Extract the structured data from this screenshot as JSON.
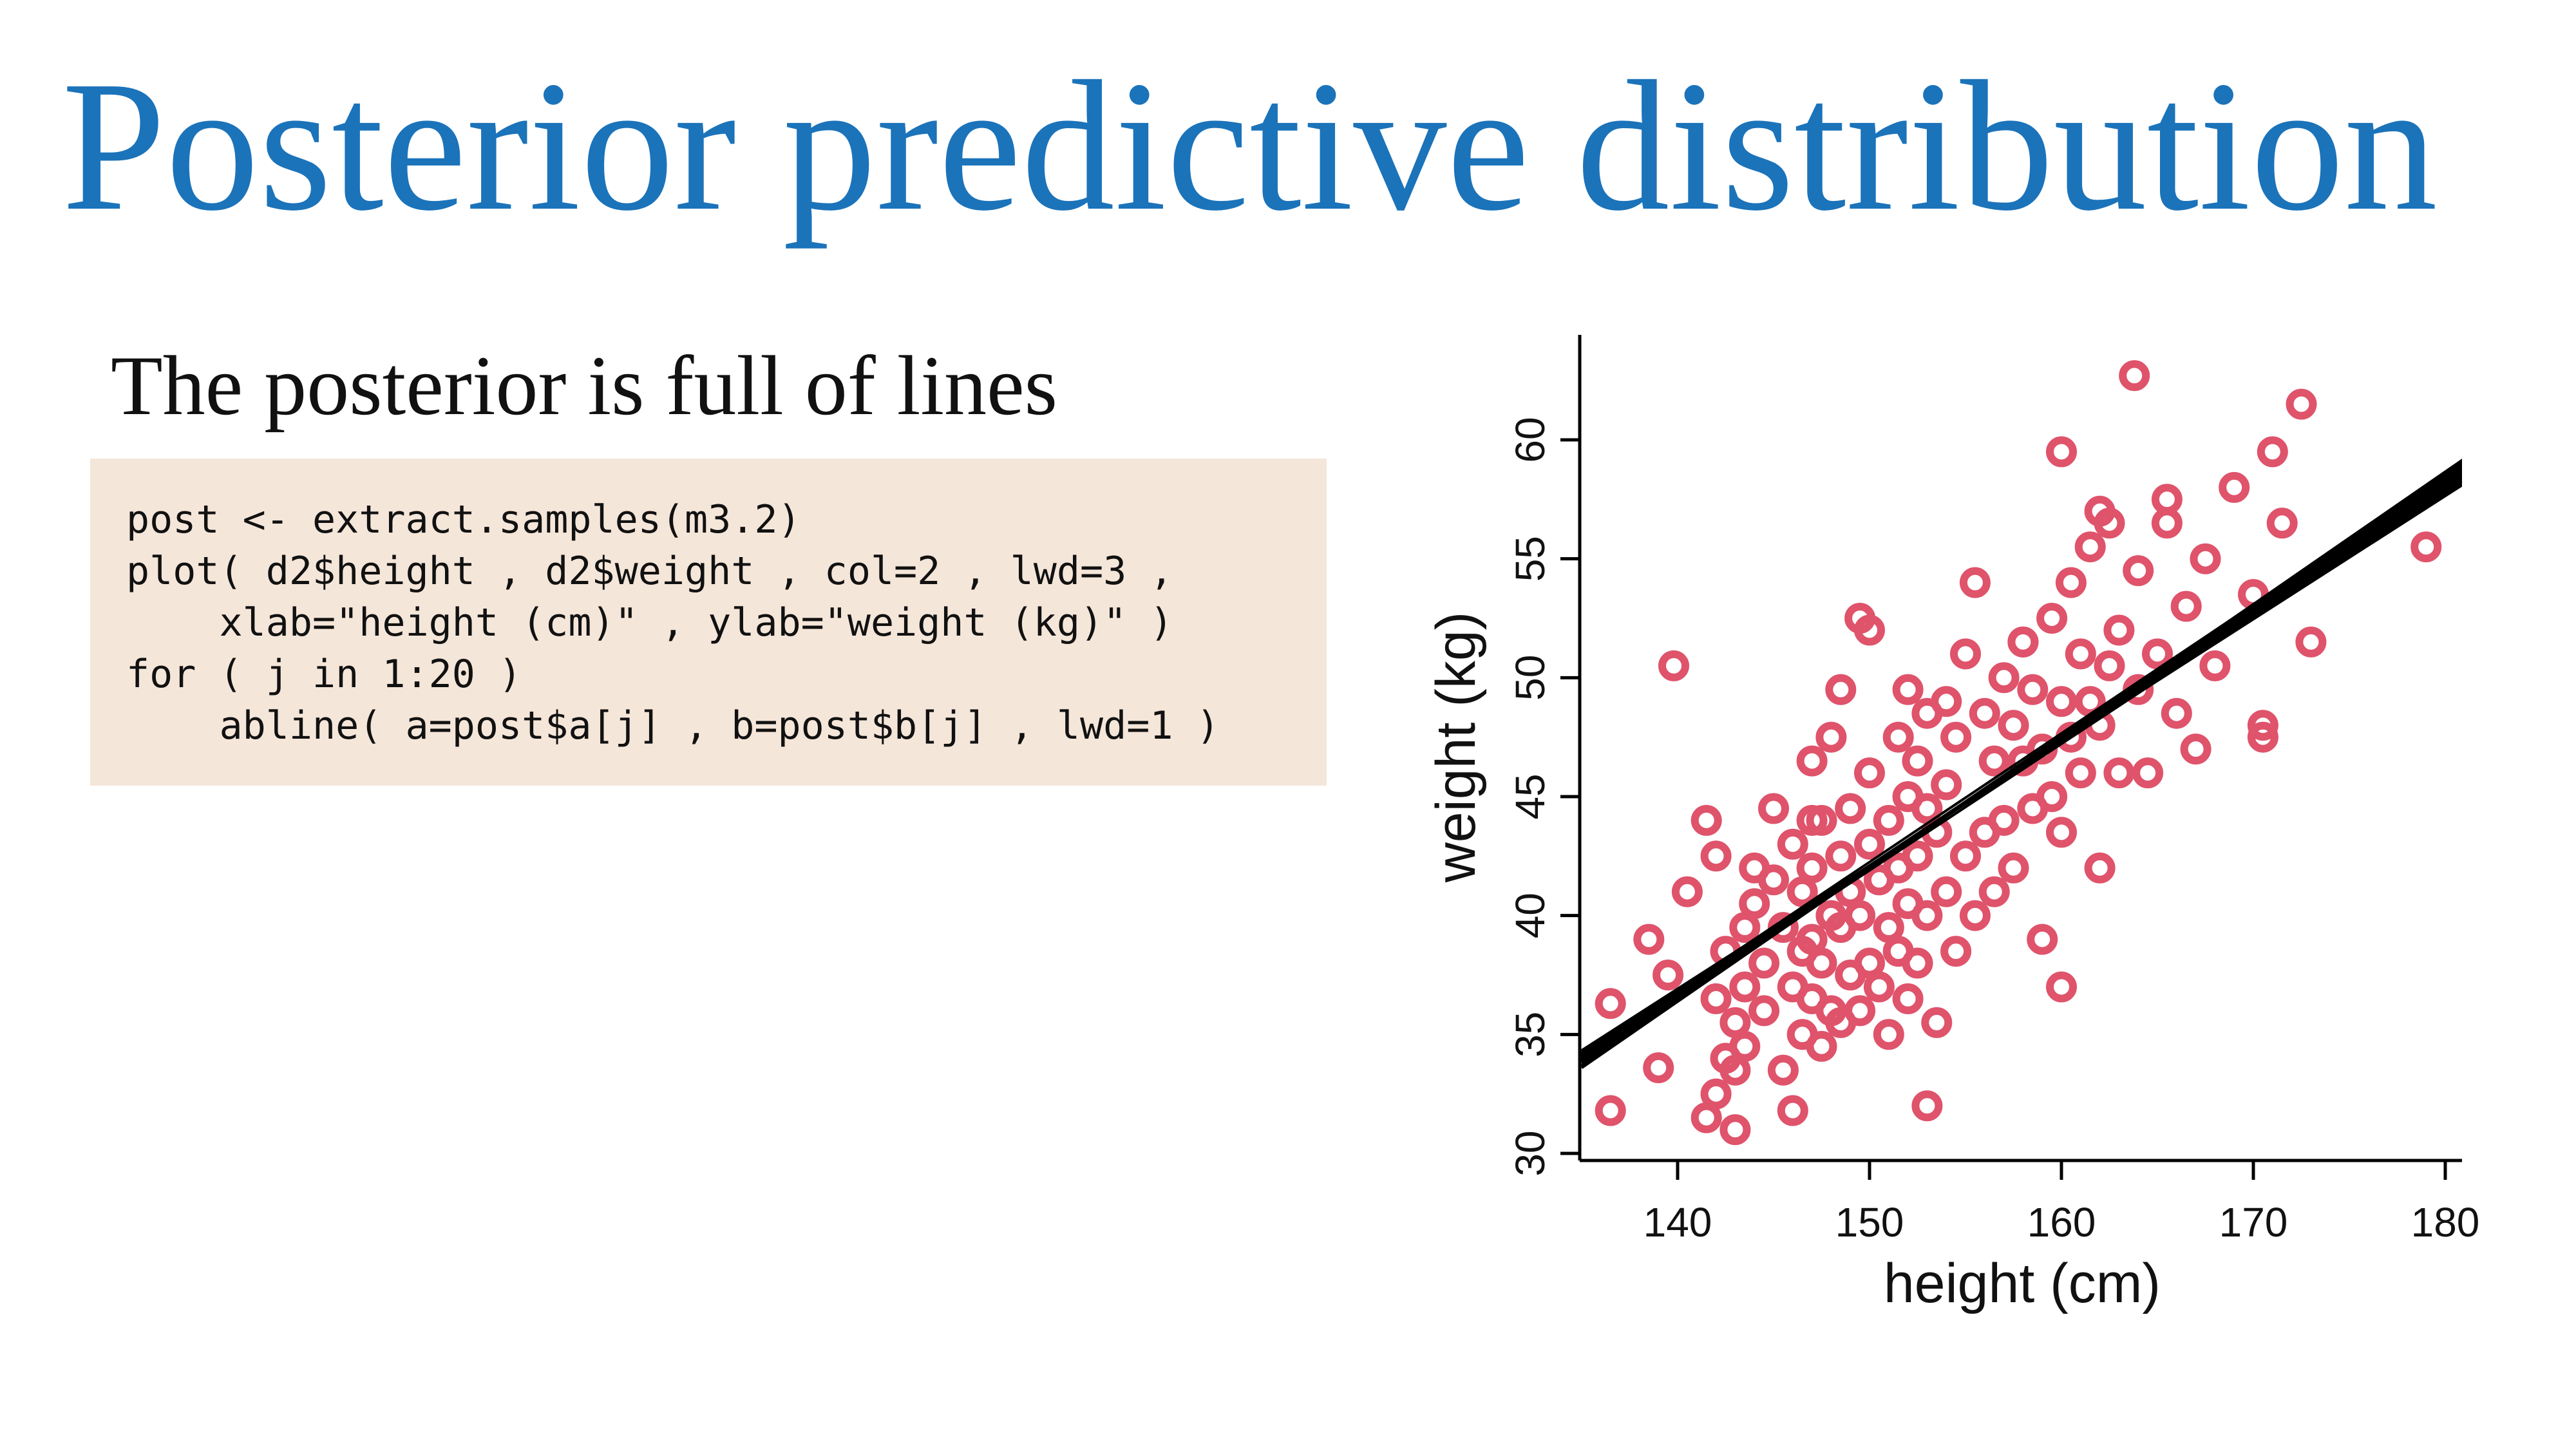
{
  "slide": {
    "title": "Posterior predictive distribution",
    "subtitle": "The posterior is full of lines"
  },
  "code": {
    "lines": [
      "post <- extract.samples(m3.2)",
      "plot( d2$height , d2$weight , col=2 , lwd=3 ,",
      "    xlab=\"height (cm)\" , ylab=\"weight (kg)\" )",
      "for ( j in 1:20 )",
      "    abline( a=post$a[j] , b=post$b[j] , lwd=1 )"
    ]
  },
  "colors": {
    "title": "#1b73ba",
    "code_background": "#f5e6da",
    "points": "#df536b",
    "lines": "#000000"
  },
  "chart_data": {
    "type": "scatter",
    "xlabel": "height (cm)",
    "ylabel": "weight (kg)",
    "xlim": [
      135,
      181
    ],
    "ylim": [
      30,
      63.5
    ],
    "xticks": [
      140,
      150,
      160,
      170,
      180
    ],
    "yticks": [
      30,
      35,
      40,
      45,
      50,
      55,
      60
    ],
    "grid": false,
    "legend": "none",
    "series": [
      {
        "marker": "open-circle",
        "x": [
          136.5,
          136.5,
          138.5,
          139.0,
          139.5,
          140.5,
          141.5,
          141.5,
          142.0,
          142.0,
          142.0,
          142.5,
          142.5,
          143.0,
          143.0,
          143.0,
          143.5,
          143.5,
          143.5,
          144.0,
          144.0,
          144.5,
          144.5,
          145.0,
          145.0,
          145.5,
          145.5,
          146.0,
          146.0,
          146.0,
          146.5,
          146.5,
          146.5,
          147.0,
          147.0,
          147.0,
          147.0,
          147.5,
          147.5,
          147.5,
          148.0,
          148.0,
          148.0,
          148.5,
          148.5,
          148.5,
          148.5,
          149.0,
          149.0,
          149.0,
          149.5,
          149.5,
          149.5,
          150.0,
          150.0,
          150.0,
          150.5,
          150.5,
          151.0,
          151.0,
          151.0,
          151.5,
          151.5,
          151.5,
          152.0,
          152.0,
          152.0,
          152.0,
          152.5,
          152.5,
          152.5,
          153.0,
          153.0,
          153.0,
          153.5,
          153.5,
          154.0,
          154.0,
          154.0,
          154.5,
          154.5,
          155.0,
          155.0,
          155.5,
          155.5,
          156.0,
          156.0,
          156.5,
          156.5,
          157.0,
          157.0,
          157.5,
          157.5,
          158.0,
          158.0,
          158.5,
          158.5,
          159.0,
          159.0,
          159.5,
          159.5,
          160.0,
          160.0,
          160.0,
          160.5,
          160.5,
          161.0,
          161.0,
          161.5,
          161.5,
          162.0,
          162.0,
          162.5,
          162.5,
          163.0,
          163.0,
          164.0,
          164.0,
          164.5,
          165.0,
          165.5,
          166.0,
          166.5,
          167.0,
          167.5,
          168.0,
          169.0,
          170.0,
          170.5,
          171.0,
          171.5,
          172.5,
          173.0,
          179.0,
          163.8,
          139.8,
          153.0,
          147.0,
          150.0,
          160.0,
          165.5,
          170.5,
          158.0,
          162.0
        ],
        "y": [
          31.8,
          36.3,
          39.0,
          33.6,
          37.5,
          41.0,
          31.5,
          44.0,
          36.5,
          42.5,
          32.5,
          34.0,
          38.5,
          31.0,
          33.5,
          35.5,
          37.0,
          39.5,
          34.5,
          40.5,
          42.0,
          36.0,
          38.0,
          41.5,
          44.5,
          33.5,
          39.5,
          31.8,
          37.0,
          43.0,
          35.0,
          38.5,
          41.0,
          36.5,
          39.0,
          42.0,
          46.5,
          34.5,
          38.0,
          44.0,
          36.0,
          40.0,
          47.5,
          35.5,
          39.5,
          42.5,
          49.5,
          37.5,
          41.0,
          44.5,
          36.0,
          40.0,
          52.5,
          38.0,
          43.0,
          46.0,
          37.0,
          41.5,
          35.0,
          39.5,
          44.0,
          38.5,
          42.0,
          47.5,
          36.5,
          40.5,
          45.0,
          49.5,
          38.0,
          42.5,
          46.5,
          32.0,
          40.0,
          44.5,
          35.5,
          43.5,
          41.0,
          45.5,
          49.0,
          38.5,
          47.5,
          42.5,
          51.0,
          40.0,
          54.0,
          43.5,
          48.5,
          41.0,
          46.5,
          44.0,
          50.0,
          42.0,
          48.0,
          46.5,
          51.5,
          44.5,
          49.5,
          39.0,
          47.0,
          45.0,
          52.5,
          37.0,
          43.5,
          59.5,
          47.5,
          54.0,
          46.0,
          51.0,
          49.0,
          55.5,
          42.0,
          48.0,
          50.5,
          56.5,
          46.0,
          52.0,
          49.5,
          54.5,
          46.0,
          51.0,
          56.5,
          48.5,
          53.0,
          47.0,
          55.0,
          50.5,
          58.0,
          53.5,
          48.0,
          59.5,
          56.5,
          61.5,
          51.5,
          55.5,
          62.7,
          50.5,
          48.5,
          44.0,
          52.0,
          49.0,
          57.5,
          47.5,
          51.5,
          57.0
        ]
      },
      {
        "name": "",
        "marker": "line",
        "lines": [
          {
            "a": -38.5,
            "b": 0.537
          },
          {
            "a": -39.6,
            "b": 0.544
          },
          {
            "a": -37.4,
            "b": 0.53
          },
          {
            "a": -40.3,
            "b": 0.549
          },
          {
            "a": -36.8,
            "b": 0.526
          },
          {
            "a": -39.0,
            "b": 0.54
          },
          {
            "a": -38.0,
            "b": 0.534
          },
          {
            "a": -41.0,
            "b": 0.553
          },
          {
            "a": -37.9,
            "b": 0.532
          },
          {
            "a": -38.8,
            "b": 0.539
          },
          {
            "a": -39.3,
            "b": 0.542
          },
          {
            "a": -36.2,
            "b": 0.522
          },
          {
            "a": -40.8,
            "b": 0.552
          },
          {
            "a": -38.3,
            "b": 0.536
          },
          {
            "a": -37.1,
            "b": 0.528
          },
          {
            "a": -39.9,
            "b": 0.546
          },
          {
            "a": -38.6,
            "b": 0.538
          },
          {
            "a": -41.6,
            "b": 0.557
          },
          {
            "a": -35.6,
            "b": 0.518
          },
          {
            "a": -38.9,
            "b": 0.541
          }
        ]
      }
    ]
  }
}
